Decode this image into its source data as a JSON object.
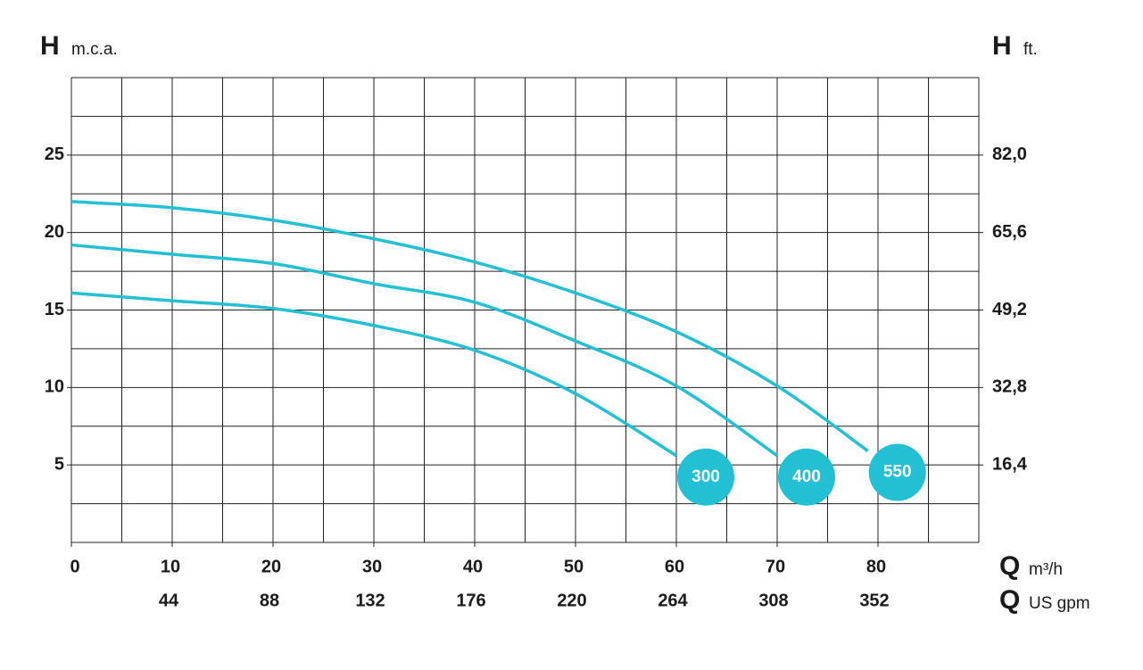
{
  "chart_data": {
    "type": "line",
    "ylabel_symbol": "H",
    "ylabel_unit": "m.c.a.",
    "y2label_symbol": "H",
    "y2label_unit": "ft.",
    "xlabel_symbol": "Q",
    "xlabel_unit": "m³/h",
    "x2label_symbol": "Q",
    "x2label_unit": "US gpm",
    "xlim": [
      0,
      90
    ],
    "xticks": [
      0,
      10,
      20,
      30,
      40,
      50,
      60,
      70,
      80
    ],
    "x2lim": [
      0,
      396
    ],
    "x2ticks": [
      44,
      88,
      132,
      176,
      220,
      264,
      308,
      352
    ],
    "ylim": [
      0,
      30
    ],
    "yticks": [
      5,
      10,
      15,
      20,
      25
    ],
    "y2lim": [
      0,
      98.4
    ],
    "y2ticks": [
      {
        "value": 16.4,
        "label": "16,4"
      },
      {
        "value": 32.8,
        "label": "32,8"
      },
      {
        "value": 49.2,
        "label": "49,2"
      },
      {
        "value": 65.6,
        "label": "65,6"
      },
      {
        "value": 82,
        "label": "82,0"
      }
    ],
    "xgrid": [
      0,
      5,
      10,
      15,
      20,
      25,
      30,
      35,
      40,
      45,
      50,
      55,
      60,
      65,
      70,
      75,
      80,
      85,
      90
    ],
    "ygrid": [
      0,
      2.5,
      5,
      7.5,
      10,
      12.5,
      15,
      17.5,
      20,
      22.5,
      25,
      27.5,
      30
    ],
    "series": [
      {
        "name": "300",
        "color": "#23bfd3",
        "x": [
          0,
          10,
          20,
          30,
          40,
          50,
          60
        ],
        "values": [
          16.1,
          15.6,
          15.1,
          14.0,
          12.4,
          9.6,
          5.6
        ]
      },
      {
        "name": "400",
        "color": "#23bfd3",
        "x": [
          0,
          10,
          20,
          30,
          40,
          50,
          60,
          70
        ],
        "values": [
          19.2,
          18.6,
          18.0,
          16.7,
          15.5,
          13.0,
          10.1,
          5.6
        ]
      },
      {
        "name": "550",
        "color": "#23bfd3",
        "x": [
          0,
          10,
          20,
          30,
          40,
          50,
          60,
          70,
          79
        ],
        "values": [
          22.0,
          21.6,
          20.8,
          19.6,
          18.1,
          16.1,
          13.6,
          10.1,
          5.9
        ]
      }
    ]
  }
}
